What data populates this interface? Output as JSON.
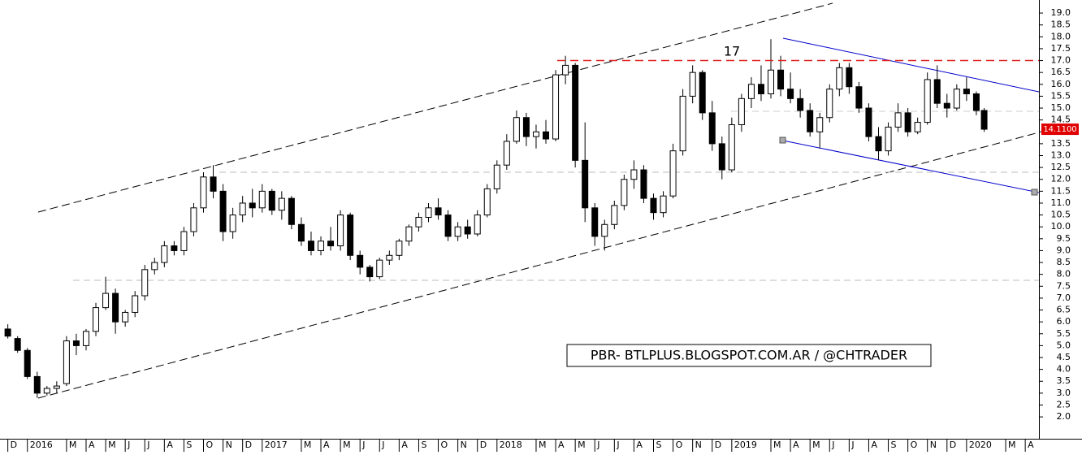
{
  "chart_data": {
    "type": "candlestick",
    "x": [
      0,
      0.5,
      1,
      1.5,
      2,
      2.5,
      3,
      3.5,
      4,
      4.5,
      5,
      5.5,
      6,
      6.5,
      7,
      7.5,
      8,
      8.5,
      9,
      9.5,
      10,
      10.5,
      11,
      11.5,
      12,
      12.5,
      13,
      13.5,
      14,
      14.5,
      15,
      15.5,
      16,
      16.5,
      17,
      17.5,
      18,
      18.5,
      19,
      19.5,
      20,
      20.5,
      21,
      21.5,
      22,
      22.5,
      23,
      23.5,
      24,
      24.5,
      25,
      25.5,
      26,
      26.5,
      27,
      27.5,
      28,
      28.5,
      29,
      29.5,
      30,
      30.5,
      31,
      31.5,
      32,
      32.5,
      33,
      33.5,
      34,
      34.5,
      35,
      35.5,
      36,
      36.5,
      37,
      37.5,
      38,
      38.5,
      39,
      39.5,
      40,
      40.5,
      41,
      41.5,
      42,
      42.5,
      43,
      43.5,
      44,
      44.5,
      45,
      45.5,
      46,
      46.5,
      47,
      47.5,
      48,
      48.5,
      49,
      49.5,
      49.9
    ],
    "open": [
      5.7,
      5.3,
      4.8,
      3.7,
      3.0,
      3.2,
      3.4,
      5.2,
      5.0,
      5.6,
      6.6,
      7.2,
      6.0,
      6.4,
      7.1,
      8.2,
      8.5,
      9.2,
      9.0,
      9.8,
      10.8,
      12.1,
      11.5,
      9.8,
      10.5,
      11.0,
      10.8,
      11.5,
      10.7,
      11.2,
      10.1,
      9.4,
      9.0,
      9.4,
      9.2,
      10.5,
      8.8,
      8.3,
      7.9,
      8.6,
      8.8,
      9.4,
      10.0,
      10.4,
      10.8,
      10.5,
      9.6,
      10.0,
      9.7,
      10.5,
      11.6,
      12.6,
      13.6,
      14.6,
      13.8,
      14.0,
      13.7,
      16.4,
      16.8,
      12.8,
      10.8,
      9.6,
      10.1,
      10.9,
      12.0,
      12.4,
      11.2,
      10.6,
      11.3,
      13.2,
      15.5,
      16.5,
      14.8,
      13.5,
      12.4,
      14.3,
      15.4,
      16.0,
      15.6,
      16.6,
      15.8,
      15.4,
      14.9,
      14.0,
      14.6,
      15.8,
      16.7,
      15.9,
      15.0,
      13.8,
      13.2,
      14.2,
      14.8,
      14.0,
      14.4,
      16.2,
      15.2,
      15.0,
      15.8,
      15.6,
      14.9
    ],
    "high": [
      5.9,
      5.4,
      4.9,
      3.9,
      3.3,
      3.5,
      5.4,
      5.5,
      5.7,
      6.8,
      7.9,
      7.4,
      6.5,
      7.3,
      8.4,
      8.7,
      9.4,
      9.4,
      10.0,
      11.0,
      12.3,
      12.6,
      11.8,
      10.8,
      11.3,
      11.6,
      11.8,
      11.6,
      11.5,
      11.3,
      10.4,
      9.8,
      9.6,
      10.0,
      10.7,
      10.6,
      9.0,
      8.4,
      8.7,
      9.0,
      9.5,
      10.1,
      10.6,
      11.0,
      11.2,
      10.7,
      10.2,
      10.3,
      10.7,
      11.8,
      12.8,
      13.9,
      14.9,
      14.8,
      14.3,
      14.5,
      16.6,
      17.2,
      16.9,
      14.4,
      11.0,
      10.3,
      11.1,
      12.2,
      12.8,
      12.6,
      11.4,
      11.5,
      13.5,
      15.8,
      16.8,
      16.6,
      15.3,
      13.8,
      14.6,
      15.6,
      16.3,
      16.8,
      17.9,
      17.2,
      16.5,
      15.8,
      15.2,
      14.8,
      16.0,
      16.9,
      16.9,
      16.1,
      15.2,
      14.2,
      14.4,
      15.2,
      15.0,
      14.6,
      16.5,
      16.8,
      15.6,
      16.0,
      16.3,
      15.7,
      15.0
    ],
    "low": [
      5.3,
      4.7,
      3.6,
      2.8,
      2.9,
      3.0,
      3.3,
      4.6,
      4.8,
      5.4,
      6.5,
      5.5,
      5.8,
      6.2,
      6.9,
      8.0,
      8.3,
      8.8,
      8.8,
      9.6,
      10.6,
      11.2,
      9.4,
      9.5,
      10.2,
      10.4,
      10.6,
      10.5,
      10.3,
      9.9,
      9.2,
      8.8,
      8.8,
      9.0,
      9.0,
      8.6,
      8.0,
      7.7,
      7.8,
      8.4,
      8.6,
      9.2,
      9.8,
      10.2,
      10.3,
      9.4,
      9.4,
      9.5,
      9.6,
      10.4,
      11.4,
      12.4,
      13.5,
      13.4,
      13.3,
      13.5,
      13.6,
      16.0,
      12.5,
      10.2,
      9.2,
      9.0,
      9.9,
      10.7,
      11.6,
      11.0,
      10.3,
      10.4,
      11.2,
      13.0,
      15.2,
      14.5,
      13.2,
      12.0,
      12.3,
      14.0,
      15.0,
      15.3,
      15.4,
      15.5,
      15.2,
      14.6,
      13.8,
      13.3,
      14.4,
      15.5,
      15.6,
      14.8,
      13.6,
      12.8,
      13.0,
      14.0,
      13.8,
      13.9,
      14.3,
      15.0,
      14.6,
      14.9,
      15.3,
      14.7,
      14.0
    ],
    "close": [
      5.4,
      4.8,
      3.7,
      3.0,
      3.2,
      3.3,
      5.2,
      5.0,
      5.6,
      6.6,
      7.2,
      6.0,
      6.4,
      7.1,
      8.2,
      8.5,
      9.2,
      9.0,
      9.8,
      10.8,
      12.1,
      11.5,
      9.8,
      10.5,
      11.0,
      10.8,
      11.5,
      10.7,
      11.2,
      10.1,
      9.4,
      9.0,
      9.4,
      9.2,
      10.5,
      8.8,
      8.3,
      7.9,
      8.6,
      8.8,
      9.4,
      10.0,
      10.4,
      10.8,
      10.5,
      9.6,
      10.0,
      9.7,
      10.5,
      11.6,
      12.6,
      13.6,
      14.6,
      13.8,
      14.0,
      13.7,
      16.4,
      16.8,
      12.8,
      10.8,
      9.6,
      10.1,
      10.9,
      12.0,
      12.4,
      11.2,
      10.6,
      11.3,
      13.2,
      15.5,
      16.5,
      14.8,
      13.5,
      12.4,
      14.3,
      15.4,
      16.0,
      15.6,
      16.6,
      15.8,
      15.4,
      14.9,
      14.0,
      14.6,
      15.8,
      16.7,
      15.9,
      15.0,
      13.8,
      13.2,
      14.2,
      14.8,
      14.0,
      14.4,
      16.2,
      15.2,
      15.0,
      15.8,
      15.6,
      14.9,
      14.11
    ],
    "ylim": [
      1.08,
      19.55
    ],
    "yticks": [
      {
        "value": 2,
        "label": "2.0"
      },
      {
        "value": 2.5,
        "label": "2.5"
      },
      {
        "value": 3,
        "label": "3.0"
      },
      {
        "value": 3.5,
        "label": "3.5"
      },
      {
        "value": 4,
        "label": "4.0"
      },
      {
        "value": 4.5,
        "label": "4.5"
      },
      {
        "value": 5,
        "label": "5.0"
      },
      {
        "value": 5.5,
        "label": "5.5"
      },
      {
        "value": 6,
        "label": "6.0"
      },
      {
        "value": 6.5,
        "label": "6.5"
      },
      {
        "value": 7,
        "label": "7.0"
      },
      {
        "value": 7.5,
        "label": "7.5"
      },
      {
        "value": 8,
        "label": "8.0"
      },
      {
        "value": 8.5,
        "label": "8.5"
      },
      {
        "value": 9,
        "label": "9.0"
      },
      {
        "value": 9.5,
        "label": "9.5"
      },
      {
        "value": 10,
        "label": "10.0"
      },
      {
        "value": 10.5,
        "label": "10.5"
      },
      {
        "value": 11,
        "label": "11.0"
      },
      {
        "value": 11.5,
        "label": "11.5"
      },
      {
        "value": 12,
        "label": "12.0"
      },
      {
        "value": 12.5,
        "label": "12.5"
      },
      {
        "value": 13,
        "label": "13.0"
      },
      {
        "value": 13.5,
        "label": "13.5"
      },
      {
        "value": 14,
        "label": "14.0"
      },
      {
        "value": 14.5,
        "label": "14.5"
      },
      {
        "value": 15,
        "label": "15.0"
      },
      {
        "value": 15.5,
        "label": "15.5"
      },
      {
        "value": 16,
        "label": "16.0"
      },
      {
        "value": 16.5,
        "label": "16.5"
      },
      {
        "value": 17,
        "label": "17.0"
      },
      {
        "value": 17.5,
        "label": "17.5"
      },
      {
        "value": 18,
        "label": "18.0"
      },
      {
        "value": 18.5,
        "label": "18.5"
      },
      {
        "value": 19,
        "label": "19.0"
      }
    ],
    "xlim": [
      -0.4,
      52.7
    ],
    "xticks": [
      {
        "value": 0,
        "label": "D"
      },
      {
        "value": 1,
        "label": "2016"
      },
      {
        "value": 3,
        "label": "M"
      },
      {
        "value": 4,
        "label": "A"
      },
      {
        "value": 5,
        "label": "M"
      },
      {
        "value": 6,
        "label": "J"
      },
      {
        "value": 7,
        "label": "J"
      },
      {
        "value": 8,
        "label": "A"
      },
      {
        "value": 9,
        "label": "S"
      },
      {
        "value": 10,
        "label": "O"
      },
      {
        "value": 11,
        "label": "N"
      },
      {
        "value": 12,
        "label": "D"
      },
      {
        "value": 13,
        "label": "2017"
      },
      {
        "value": 15,
        "label": "M"
      },
      {
        "value": 16,
        "label": "A"
      },
      {
        "value": 17,
        "label": "M"
      },
      {
        "value": 18,
        "label": "J"
      },
      {
        "value": 19,
        "label": "J"
      },
      {
        "value": 20,
        "label": "A"
      },
      {
        "value": 21,
        "label": "S"
      },
      {
        "value": 22,
        "label": "O"
      },
      {
        "value": 23,
        "label": "N"
      },
      {
        "value": 24,
        "label": "D"
      },
      {
        "value": 25,
        "label": "2018"
      },
      {
        "value": 27,
        "label": "M"
      },
      {
        "value": 28,
        "label": "A"
      },
      {
        "value": 29,
        "label": "M"
      },
      {
        "value": 30,
        "label": "J"
      },
      {
        "value": 31,
        "label": "J"
      },
      {
        "value": 32,
        "label": "A"
      },
      {
        "value": 33,
        "label": "S"
      },
      {
        "value": 34,
        "label": "O"
      },
      {
        "value": 35,
        "label": "N"
      },
      {
        "value": 36,
        "label": "D"
      },
      {
        "value": 37,
        "label": "2019"
      },
      {
        "value": 39,
        "label": "M"
      },
      {
        "value": 40,
        "label": "A"
      },
      {
        "value": 41,
        "label": "M"
      },
      {
        "value": 42,
        "label": "J"
      },
      {
        "value": 43,
        "label": "J"
      },
      {
        "value": 44,
        "label": "A"
      },
      {
        "value": 45,
        "label": "S"
      },
      {
        "value": 46,
        "label": "O"
      },
      {
        "value": 47,
        "label": "N"
      },
      {
        "value": 48,
        "label": "D"
      },
      {
        "value": 49,
        "label": "2020"
      },
      {
        "value": 51,
        "label": "M"
      },
      {
        "value": 52,
        "label": "A"
      }
    ],
    "up_color": "#ffffff",
    "down_color": "#000000",
    "resistance": {
      "value": 17,
      "label": "17",
      "color": "#e02020"
    },
    "last_price": {
      "value": 14.11,
      "label": "14.1100",
      "color": "#e00000"
    },
    "watermark": "PBR- BTLPLUS.BLOGSPOT.COM.AR / @CHTRADER"
  }
}
